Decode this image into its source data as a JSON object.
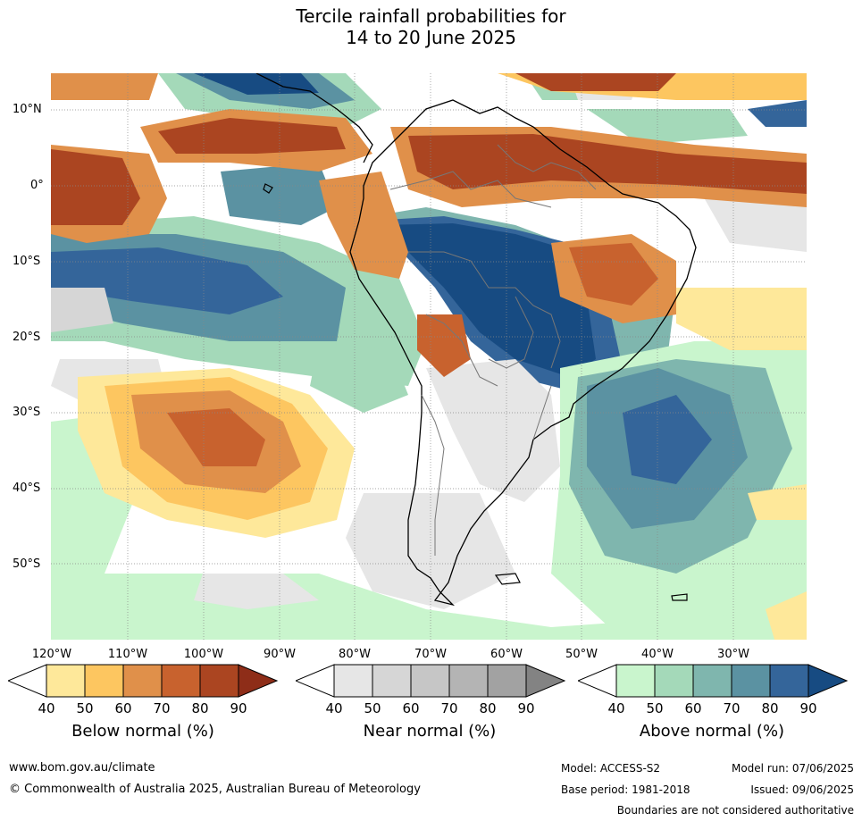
{
  "title": {
    "line1": "Tercile rainfall probabilities for",
    "line2": "14 to 20 June 2025"
  },
  "map": {
    "lat_labels": [
      "10°N",
      "0°",
      "10°S",
      "20°S",
      "30°S",
      "40°S",
      "50°S"
    ],
    "lon_labels": [
      "120°W",
      "110°W",
      "100°W",
      "90°W",
      "80°W",
      "70°W",
      "60°W",
      "50°W",
      "40°W",
      "30°W"
    ]
  },
  "colorbars": [
    {
      "label": "Below normal (%)",
      "ticks": [
        "40",
        "50",
        "60",
        "70",
        "80",
        "90"
      ],
      "colors": [
        "#ffffff",
        "#fee89a",
        "#fdc660",
        "#e0904a",
        "#c8622e",
        "#ab4521",
        "#8e2d18"
      ]
    },
    {
      "label": "Near normal (%)",
      "ticks": [
        "40",
        "50",
        "60",
        "70",
        "80",
        "90"
      ],
      "colors": [
        "#ffffff",
        "#e6e6e6",
        "#d6d6d6",
        "#c6c6c6",
        "#b4b4b4",
        "#a2a2a2",
        "#838383"
      ]
    },
    {
      "label": "Above normal (%)",
      "ticks": [
        "40",
        "50",
        "60",
        "70",
        "80",
        "90"
      ],
      "colors": [
        "#ffffff",
        "#c9f5cd",
        "#a4d9b9",
        "#7fb6ae",
        "#5b92a2",
        "#34659a",
        "#174b82"
      ]
    }
  ],
  "footer": {
    "website": "www.bom.gov.au/climate",
    "copyright": "© Commonwealth of Australia 2025, Australian Bureau of Meteorology",
    "model": "Model: ACCESS-S2",
    "base_period": "Base period: 1981-2018",
    "model_run": "Model run: 07/06/2025",
    "issued": "Issued: 09/06/2025",
    "disclaimer": "Boundaries are not considered authoritative"
  }
}
